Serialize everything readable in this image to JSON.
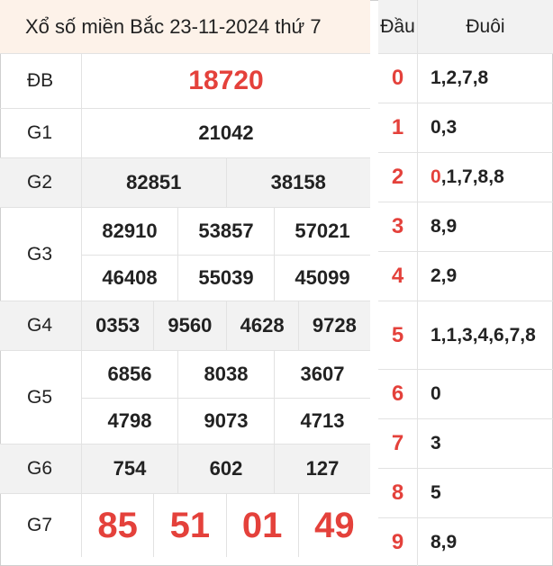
{
  "title": "Xổ số miền Bắc 23-11-2024 thứ 7",
  "prizes": {
    "db": {
      "label": "ĐB",
      "numbers": [
        "18720"
      ]
    },
    "g1": {
      "label": "G1",
      "numbers": [
        "21042"
      ]
    },
    "g2": {
      "label": "G2",
      "numbers": [
        "82851",
        "38158"
      ]
    },
    "g3": {
      "label": "G3",
      "numbers": [
        "82910",
        "53857",
        "57021",
        "46408",
        "55039",
        "45099"
      ]
    },
    "g4": {
      "label": "G4",
      "numbers": [
        "0353",
        "9560",
        "4628",
        "9728"
      ]
    },
    "g5": {
      "label": "G5",
      "numbers": [
        "6856",
        "8038",
        "3607",
        "4798",
        "9073",
        "4713"
      ]
    },
    "g6": {
      "label": "G6",
      "numbers": [
        "754",
        "602",
        "127"
      ]
    },
    "g7": {
      "label": "G7",
      "numbers": [
        "85",
        "51",
        "01",
        "49"
      ]
    }
  },
  "loto": {
    "head_label": "Đầu",
    "tail_label": "Đuôi",
    "rows": [
      {
        "head": "0",
        "tail_first": "",
        "tail_rest": "1,2,7,8"
      },
      {
        "head": "1",
        "tail_first": "",
        "tail_rest": "0,3"
      },
      {
        "head": "2",
        "tail_first": "0",
        "tail_rest": ",1,7,8,8"
      },
      {
        "head": "3",
        "tail_first": "",
        "tail_rest": "8,9"
      },
      {
        "head": "4",
        "tail_first": "",
        "tail_rest": "2,9"
      },
      {
        "head": "5",
        "tail_first": "",
        "tail_rest": "1,1,3,4,6,7,8"
      },
      {
        "head": "6",
        "tail_first": "",
        "tail_rest": "0"
      },
      {
        "head": "7",
        "tail_first": "",
        "tail_rest": "3"
      },
      {
        "head": "8",
        "tail_first": "",
        "tail_rest": "5"
      },
      {
        "head": "9",
        "tail_first": "",
        "tail_rest": "8,9"
      }
    ]
  },
  "colors": {
    "accent_red": "#e4413b",
    "title_bg": "#fdf2e9",
    "shade": "#f2f2f2"
  }
}
